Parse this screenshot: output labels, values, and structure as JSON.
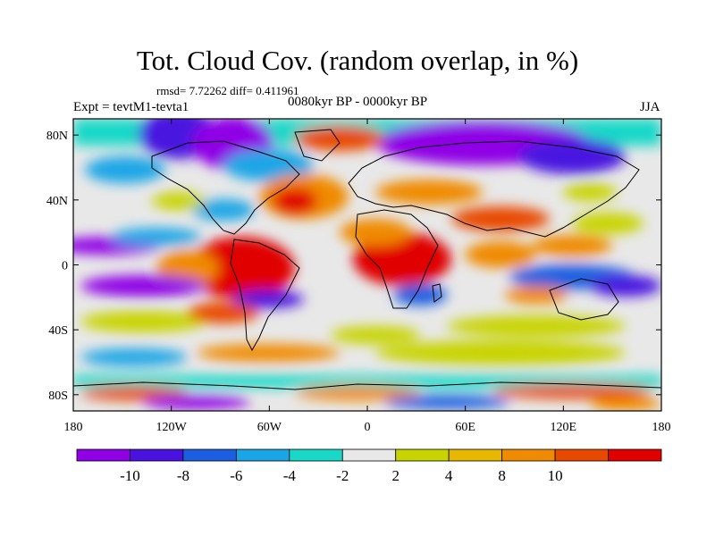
{
  "title": "Tot. Cloud Cov. (random overlap, in %)",
  "stats": "rmsd= 7.72262 diff= 0.411961",
  "experiment": "Expt = tevtM1-tevta1",
  "period": "0080kyr BP - 0000kyr BP",
  "season": "JJA",
  "map": {
    "lon_range": [
      -180,
      180
    ],
    "lat_range": [
      -90,
      90
    ],
    "lon_ticks": [
      {
        "value": -180,
        "label": "180"
      },
      {
        "value": -120,
        "label": "120W"
      },
      {
        "value": -60,
        "label": "60W"
      },
      {
        "value": 0,
        "label": "0"
      },
      {
        "value": 60,
        "label": "60E"
      },
      {
        "value": 120,
        "label": "120E"
      },
      {
        "value": 180,
        "label": "180"
      }
    ],
    "lat_ticks": [
      {
        "value": 80,
        "label": "80N"
      },
      {
        "value": 40,
        "label": "40N"
      },
      {
        "value": 0,
        "label": "0"
      },
      {
        "value": -40,
        "label": "40S"
      },
      {
        "value": -80,
        "label": "80S"
      }
    ],
    "field_description_regions": [
      {
        "lon": [
          -170,
          -120
        ],
        "lat": [
          5,
          20
        ],
        "class": -10
      },
      {
        "lon": [
          -160,
          -90
        ],
        "lat": [
          -20,
          -5
        ],
        "class": -10
      },
      {
        "lon": [
          -120,
          -60
        ],
        "lat": [
          -10,
          15
        ],
        "class": 10
      },
      {
        "lon": [
          -150,
          -100
        ],
        "lat": [
          60,
          85
        ],
        "class": -10
      },
      {
        "lon": [
          -10,
          40
        ],
        "lat": [
          -10,
          15
        ],
        "class": 10
      },
      {
        "lon": [
          60,
          140
        ],
        "lat": [
          55,
          80
        ],
        "class": -10
      },
      {
        "lon": [
          90,
          160
        ],
        "lat": [
          -10,
          5
        ],
        "class": -8
      },
      {
        "lon": [
          -100,
          -40
        ],
        "lat": [
          20,
          45
        ],
        "class": 8
      },
      {
        "lon": [
          -170,
          -100
        ],
        "lat": [
          -40,
          -25
        ],
        "class": 4
      },
      {
        "lon": [
          40,
          170
        ],
        "lat": [
          -55,
          -40
        ],
        "class": 4
      }
    ]
  },
  "colorbar": {
    "colors": [
      "#8f00e6",
      "#4a12e0",
      "#1b5fe0",
      "#1aa6e6",
      "#19d8c8",
      "#e8e8e8",
      "#c8d400",
      "#e8b800",
      "#f08a00",
      "#e84800",
      "#e00000"
    ],
    "labels": [
      "-10",
      "-8",
      "-6",
      "-4",
      "-2",
      "2",
      "4",
      "8",
      "10"
    ]
  }
}
